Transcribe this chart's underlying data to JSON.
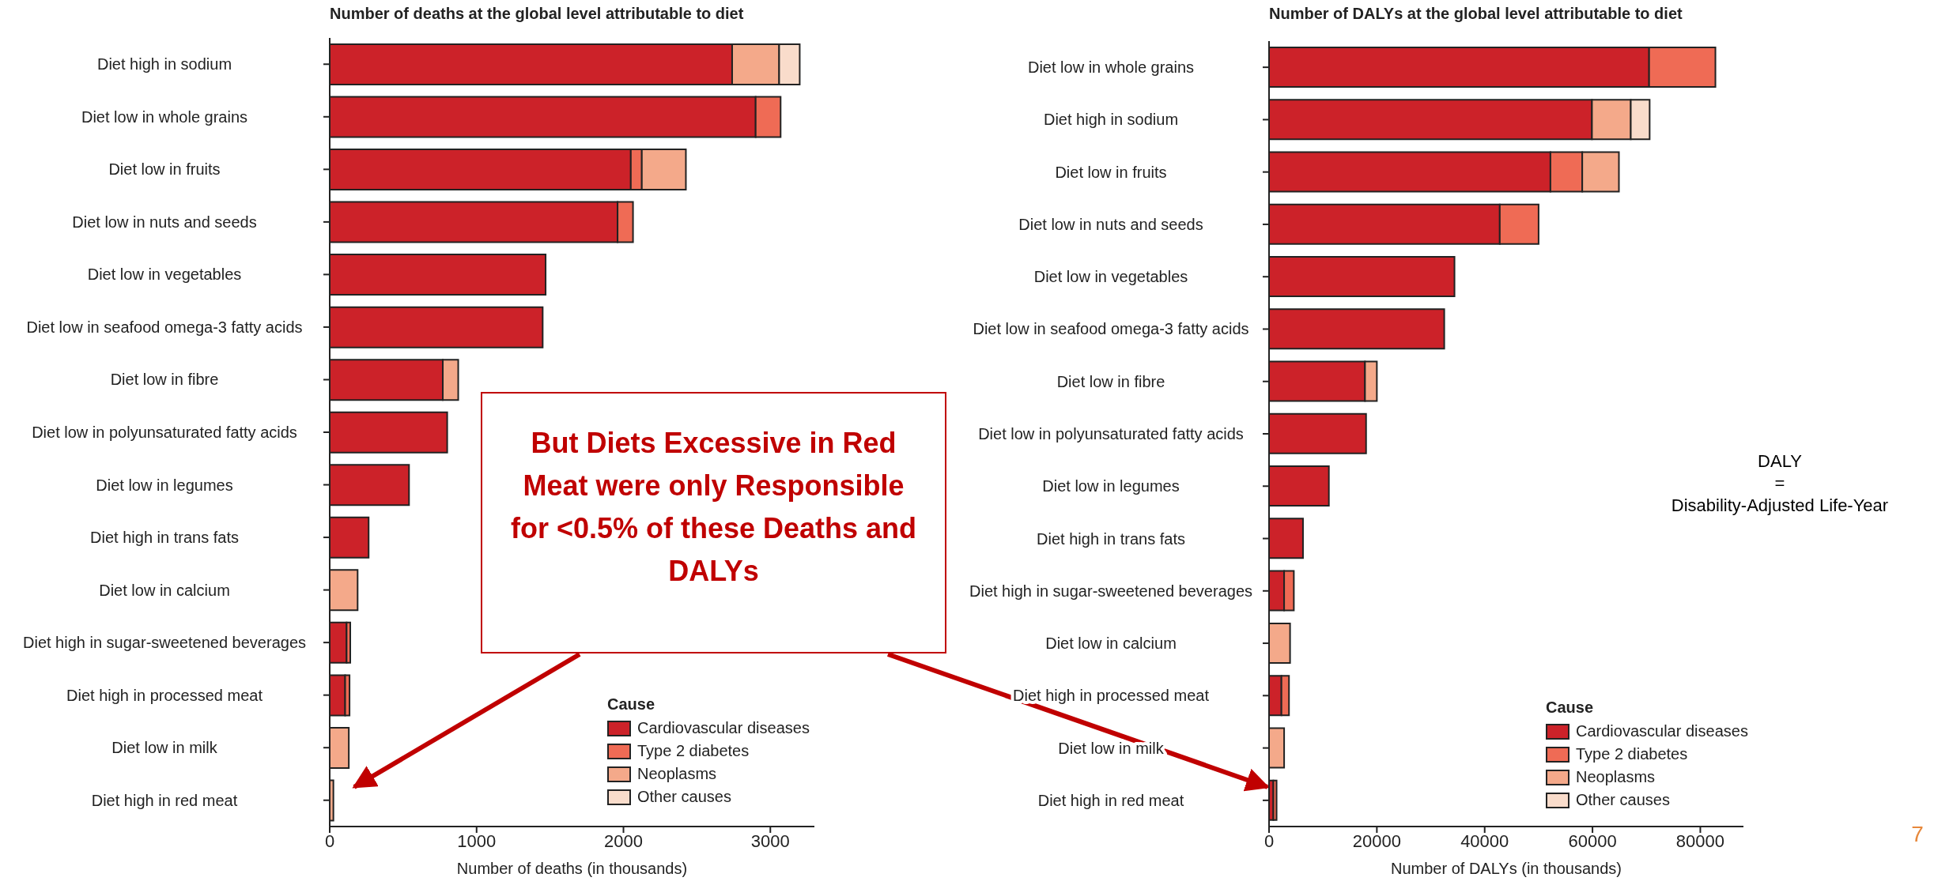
{
  "chart_data": [
    {
      "type": "bar",
      "orientation": "horizontal",
      "stacked": true,
      "title": "Number of deaths at the global level attributable to diet",
      "xlabel": "Number of deaths (in thousands)",
      "legend_title": "Cause",
      "legend": "bottom right",
      "categories": [
        "Diet high in sodium",
        "Diet low in whole grains",
        "Diet low in fruits",
        "Diet low in nuts and seeds",
        "Diet low in vegetables",
        "Diet low in seafood omega-3 fatty acids",
        "Diet low in fibre",
        "Diet low in polyunsaturated fatty acids",
        "Diet low in legumes",
        "Diet high in trans fats",
        "Diet low in calcium",
        "Diet high in sugar-sweetened beverages",
        "Diet high in processed meat",
        "Diet low in milk",
        "Diet high in red meat"
      ],
      "series": [
        {
          "name": "Cardiovascular diseases",
          "color": "#cc2229",
          "values": [
            2740,
            2900,
            2050,
            1960,
            1470,
            1450,
            770,
            800,
            540,
            265,
            null,
            115,
            105,
            null,
            null
          ]
        },
        {
          "name": "Type 2 diabetes",
          "color": "#ef6b55",
          "values": [
            null,
            170,
            75,
            105,
            null,
            null,
            null,
            null,
            null,
            null,
            null,
            25,
            30,
            null,
            null
          ]
        },
        {
          "name": "Neoplasms",
          "color": "#f4a98a",
          "values": [
            320,
            null,
            300,
            null,
            null,
            null,
            105,
            null,
            null,
            null,
            190,
            null,
            null,
            130,
            25
          ]
        },
        {
          "name": "Other causes",
          "color": "#f9dccb",
          "values": [
            140,
            null,
            null,
            null,
            null,
            null,
            null,
            null,
            null,
            null,
            null,
            null,
            null,
            null,
            null
          ]
        }
      ],
      "xlim": [
        0,
        3300
      ],
      "xticks": [
        0,
        1000,
        2000,
        3000
      ],
      "annotations": [
        "But Diets Excessive in Red Meat were only Responsible for <0.5% of these Deaths and DALYs"
      ]
    },
    {
      "type": "bar",
      "orientation": "horizontal",
      "stacked": true,
      "title": "Number of DALYs at the global level attributable to diet",
      "xlabel": "Number of DALYs (in thousands)",
      "legend_title": "Cause",
      "legend": "bottom right",
      "categories": [
        "Diet low in whole grains",
        "Diet high in sodium",
        "Diet low in fruits",
        "Diet low in nuts and seeds",
        "Diet low in vegetables",
        "Diet low in seafood omega-3 fatty acids",
        "Diet low in fibre",
        "Diet low in polyunsaturated fatty acids",
        "Diet low in legumes",
        "Diet high in trans fats",
        "Diet high in sugar-sweetened beverages",
        "Diet low in calcium",
        "Diet high in processed meat",
        "Diet low in milk",
        "Diet high in red meat"
      ],
      "series": [
        {
          "name": "Cardiovascular diseases",
          "color": "#cc2229",
          "values": [
            70500,
            59900,
            52200,
            42800,
            34400,
            32500,
            17800,
            18000,
            11100,
            6300,
            2800,
            null,
            2300,
            null,
            800
          ]
        },
        {
          "name": "Type 2 diabetes",
          "color": "#ef6b55",
          "values": [
            12300,
            null,
            5900,
            7200,
            null,
            null,
            null,
            null,
            null,
            null,
            1800,
            null,
            1400,
            null,
            600
          ]
        },
        {
          "name": "Neoplasms",
          "color": "#f4a98a",
          "values": [
            null,
            7200,
            6800,
            null,
            null,
            null,
            2200,
            null,
            null,
            null,
            null,
            3900,
            null,
            2800,
            null
          ]
        },
        {
          "name": "Other causes",
          "color": "#f9dccb",
          "values": [
            null,
            3500,
            null,
            null,
            null,
            null,
            null,
            null,
            null,
            null,
            null,
            null,
            null,
            null,
            null
          ]
        }
      ],
      "xlim": [
        0,
        88000
      ],
      "xticks": [
        0,
        20000,
        40000,
        60000,
        80000
      ],
      "annotations": [
        "DALY\n=\nDisability-Adjusted Life-Year",
        "7"
      ]
    }
  ]
}
